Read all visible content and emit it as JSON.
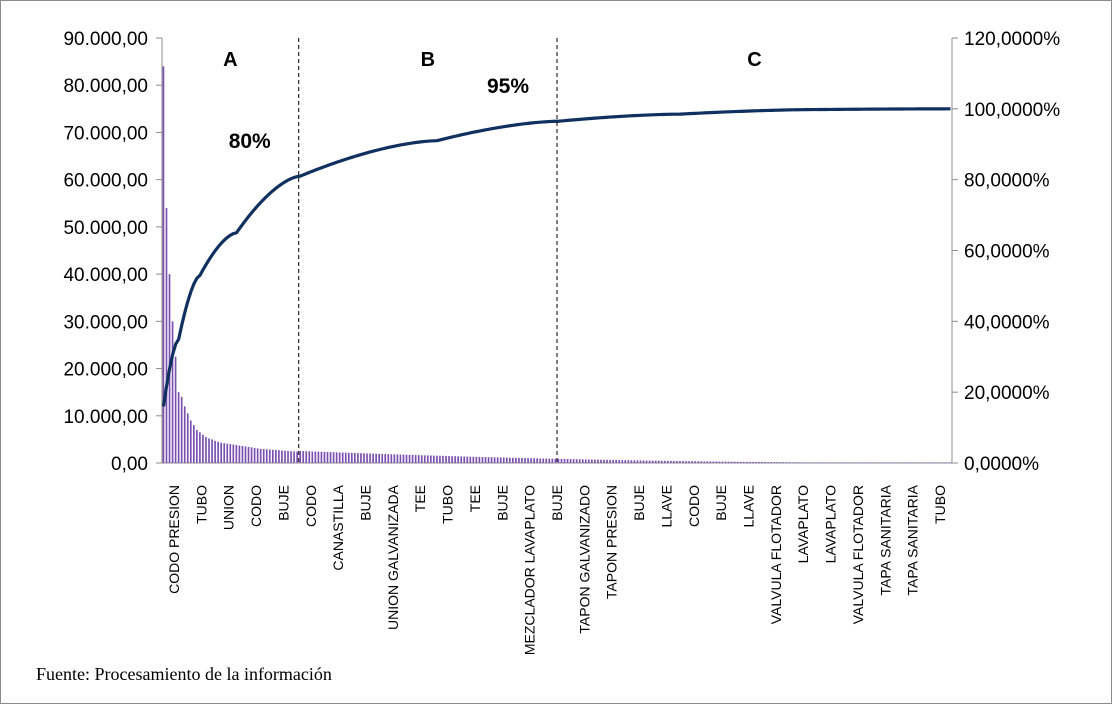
{
  "chart_data": {
    "type": "bar",
    "title": "",
    "xlabel": "",
    "ylabel": "",
    "y2label": "",
    "ylim": [
      0,
      90000
    ],
    "y2lim": [
      0,
      120
    ],
    "y_ticks": [
      "0,00",
      "10.000,00",
      "20.000,00",
      "30.000,00",
      "40.000,00",
      "50.000,00",
      "60.000,00",
      "70.000,00",
      "80.000,00",
      "90.000,00"
    ],
    "y2_ticks": [
      "0,0000%",
      "20,0000%",
      "40,0000%",
      "60,0000%",
      "80,0000%",
      "100,0000%",
      "120,0000%"
    ],
    "bar_color": "#7b4fb0",
    "line_color": "#10305f",
    "bar_values_head": [
      84000,
      54000,
      40000,
      30000,
      22500,
      15000,
      14000,
      12000,
      10500,
      9000,
      8000,
      7000,
      6500,
      6000,
      5500,
      5200,
      5000,
      4700,
      4500,
      4300,
      4200,
      4100,
      4000,
      3900,
      3800,
      3700,
      3600,
      3500,
      3400,
      3300,
      3200,
      3100,
      3000,
      2950,
      2900,
      2850,
      2800,
      2750,
      2700,
      2650,
      2600,
      2550,
      2500,
      2450,
      2400
    ],
    "bar_count": 260,
    "pareto_key_points": [
      [
        0,
        16
      ],
      [
        5,
        35
      ],
      [
        12,
        53
      ],
      [
        24,
        65
      ],
      [
        45,
        81
      ],
      [
        90,
        91
      ],
      [
        130,
        96.5
      ],
      [
        170,
        98.5
      ],
      [
        215,
        99.8
      ],
      [
        259,
        100
      ]
    ],
    "category_labels": [
      "CODO PRESION",
      "TUBO",
      "UNION",
      "CODO",
      "BUJE",
      "CODO",
      "CANASTILLA",
      "BUJE",
      "UNION GALVANIZADA",
      "TEE",
      "TUBO",
      "TEE",
      "BUJE",
      "MEZCLADOR LAVAPLATO",
      "BUJE",
      "TAPON GALVANIZADO",
      "TAPON PRESION",
      "BUJE",
      "LLAVE",
      "CODO",
      "BUJE",
      "LLAVE",
      "VALVULA FLOTADOR",
      "LAVAPLATO",
      "LAVAPLATO",
      "VALVULA FLOTADOR",
      "TAPA SANITARIA",
      "TAPA SANITARIA",
      "TUBO"
    ],
    "zones": [
      {
        "label": "A",
        "end_index": 45
      },
      {
        "label": "B",
        "end_index": 130
      },
      {
        "label": "C",
        "end_index": 260
      }
    ],
    "annotations": [
      {
        "text": "80%",
        "at_index": 45,
        "value_pct": 81
      },
      {
        "text": "95%",
        "at_index": 130,
        "value_pct": 96.5
      }
    ],
    "legend": "none",
    "grid": false
  },
  "source_note": "Fuente: Procesamiento de la información"
}
